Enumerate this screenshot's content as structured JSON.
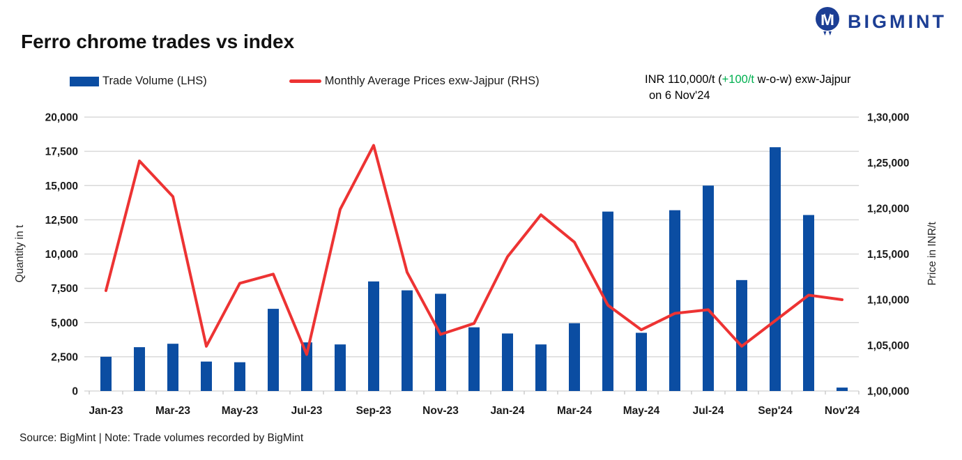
{
  "header": {
    "title": "Ferro chrome trades vs index",
    "logo_text": "BIGMINT",
    "logo_icon": "bigmint-people-m-icon",
    "logo_color": "#1c3e94"
  },
  "legend": [
    {
      "label": "Trade Volume (LHS)",
      "swatch": "bar",
      "color": "#0b4da2"
    },
    {
      "label": "Monthly Average Prices exw-Jajpur (RHS)",
      "swatch": "line",
      "color": "#ed3333"
    }
  ],
  "annotation": {
    "prefix": "INR 110,000/t (",
    "change": "+100/t",
    "suffix": " w-o-w) exw-Jajpur",
    "line2": "on 6 Nov'24",
    "change_color": "#00b050"
  },
  "footer": {
    "text": "Source: BigMint | Note: Trade volumes recorded by BigMint"
  },
  "colors": {
    "bar_blue": "#0b4da2",
    "line_red": "#ed3333",
    "grid_gray": "#d9d9d9",
    "accent_green": "#00b050",
    "logo_navy": "#1c3e94"
  },
  "chart_data": {
    "type": "bar+line combo",
    "grid": true,
    "legend_position": "top",
    "categories": [
      "Jan-23",
      "Feb-23",
      "Mar-23",
      "Apr-23",
      "May-23",
      "Jun-23",
      "Jul-23",
      "Aug-23",
      "Sep-23",
      "Oct-23",
      "Nov-23",
      "Dec-23",
      "Jan-24",
      "Feb-24",
      "Mar-24",
      "Apr-24",
      "May-24",
      "Jun-24",
      "Jul-24",
      "Aug-24",
      "Sep-24",
      "Oct-24",
      "Nov-24"
    ],
    "x_tick_labels": [
      {
        "i": 0,
        "label": "Jan-23"
      },
      {
        "i": 2,
        "label": "Mar-23"
      },
      {
        "i": 4,
        "label": "May-23"
      },
      {
        "i": 6,
        "label": "Jul-23"
      },
      {
        "i": 8,
        "label": "Sep-23"
      },
      {
        "i": 10,
        "label": "Nov-23"
      },
      {
        "i": 12,
        "label": "Jan-24"
      },
      {
        "i": 14,
        "label": "Mar-24"
      },
      {
        "i": 16,
        "label": "May-24"
      },
      {
        "i": 18,
        "label": "Jul-24"
      },
      {
        "i": 20,
        "label": "Sep'24"
      },
      {
        "i": 22,
        "label": "Nov'24"
      }
    ],
    "series": [
      {
        "name": "Trade Volume (LHS)",
        "type": "bar",
        "axis": "left",
        "color": "#0b4da2",
        "values": [
          2500,
          3200,
          3450,
          2150,
          2100,
          6000,
          3550,
          3400,
          8000,
          7350,
          7100,
          4650,
          4200,
          3400,
          4950,
          13100,
          4250,
          13200,
          15000,
          8100,
          17800,
          12850,
          250
        ]
      },
      {
        "name": "Monthly Average Prices exw-Jajpur (RHS)",
        "type": "line",
        "axis": "right",
        "color": "#ed3333",
        "values": [
          111000,
          125200,
          121300,
          104900,
          111800,
          112800,
          104000,
          119900,
          126900,
          113000,
          106200,
          107400,
          114700,
          119300,
          116300,
          109400,
          106700,
          108500,
          108900,
          104900,
          107700,
          110500,
          110000
        ]
      }
    ],
    "left_axis": {
      "label": "Quantity in t",
      "min": 0,
      "max": 20000,
      "step": 2500,
      "ticks": [
        {
          "v": 0,
          "label": "0"
        },
        {
          "v": 2500,
          "label": "2,500"
        },
        {
          "v": 5000,
          "label": "5,000"
        },
        {
          "v": 7500,
          "label": "7,500"
        },
        {
          "v": 10000,
          "label": "10,000"
        },
        {
          "v": 12500,
          "label": "12,500"
        },
        {
          "v": 15000,
          "label": "15,000"
        },
        {
          "v": 17500,
          "label": "17,500"
        },
        {
          "v": 20000,
          "label": "20,000"
        }
      ]
    },
    "right_axis": {
      "label": "Price in INR/t",
      "min": 100000,
      "max": 130000,
      "step": 5000,
      "ticks": [
        {
          "v": 100000,
          "label": "1,00,000"
        },
        {
          "v": 105000,
          "label": "1,05,000"
        },
        {
          "v": 110000,
          "label": "1,10,000"
        },
        {
          "v": 115000,
          "label": "1,15,000"
        },
        {
          "v": 120000,
          "label": "1,20,000"
        },
        {
          "v": 125000,
          "label": "1,25,000"
        },
        {
          "v": 130000,
          "label": "1,30,000"
        }
      ]
    }
  }
}
